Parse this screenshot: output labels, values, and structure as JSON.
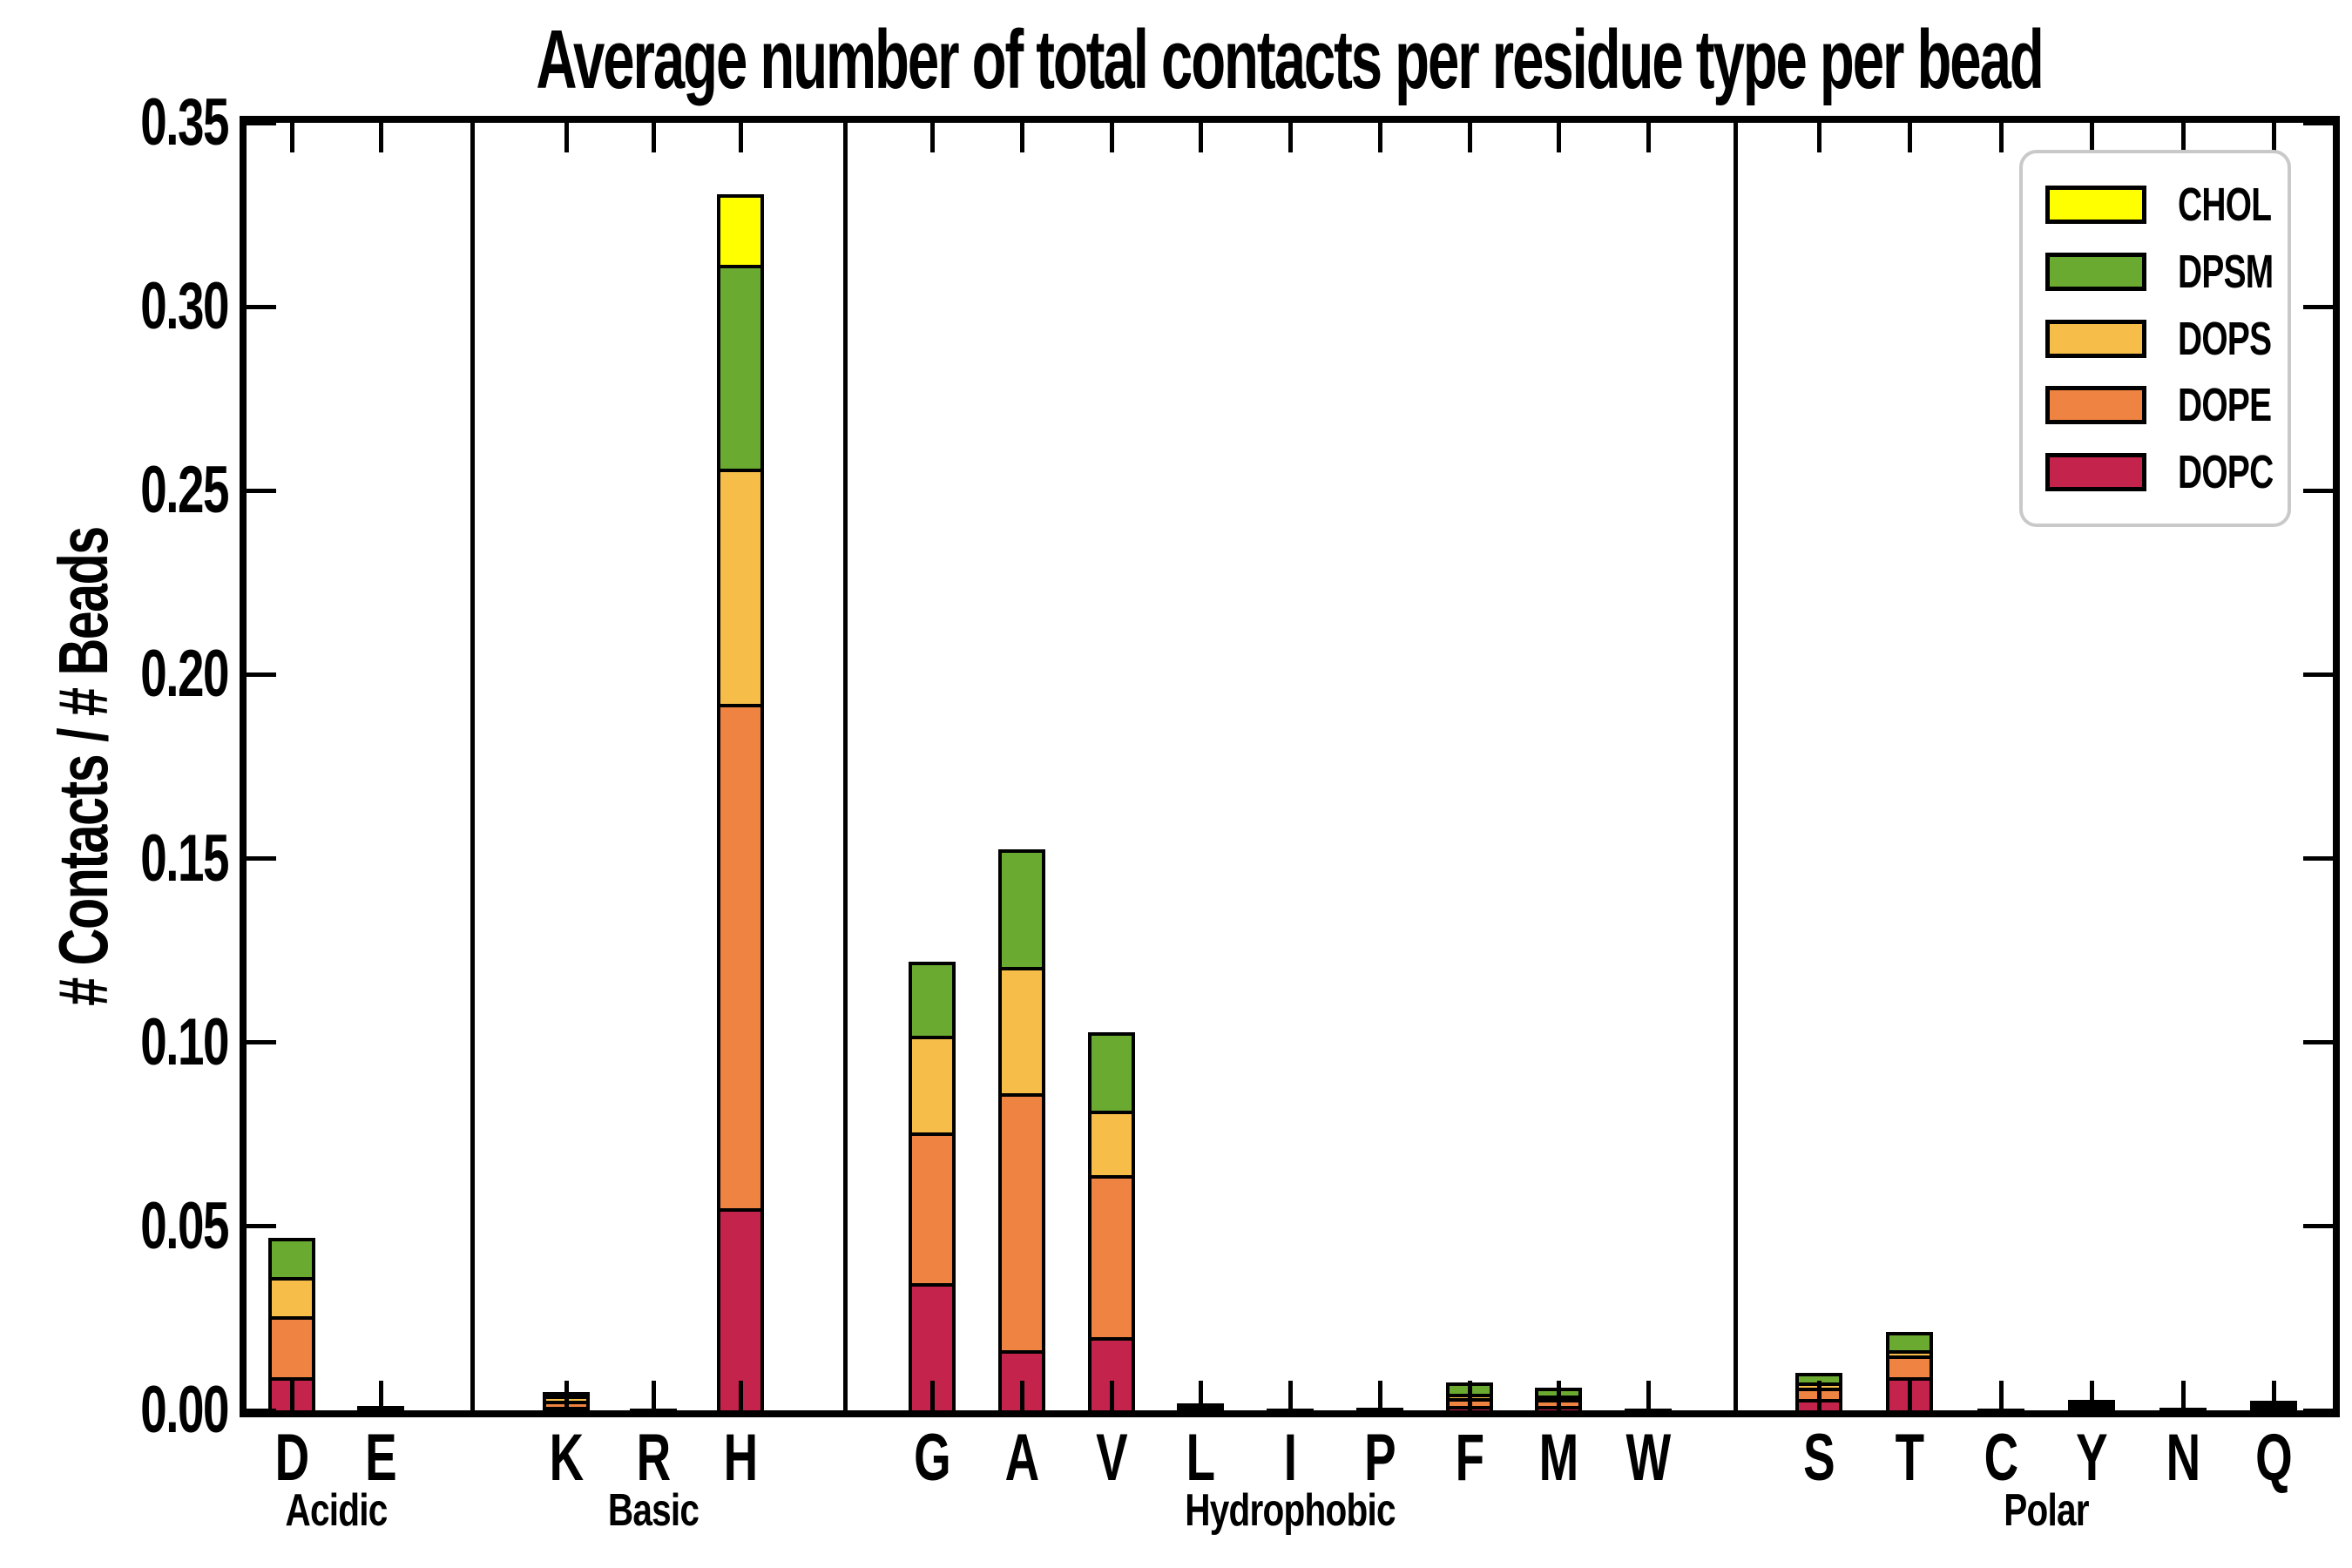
{
  "chart_data": {
    "type": "bar",
    "stacked": true,
    "title": "Average number of total contacts per residue type per bead",
    "ylabel": "# Contacts / # Beads",
    "ylim": [
      0,
      0.35
    ],
    "ytick_labels": [
      "0.00",
      "0.05",
      "0.10",
      "0.15",
      "0.20",
      "0.25",
      "0.30",
      "0.35"
    ],
    "grid": false,
    "legend_position": "upper right",
    "legend_entries": [
      {
        "label": "CHOL",
        "color": "#FFFF00"
      },
      {
        "label": "DPSM",
        "color": "#6AAA31"
      },
      {
        "label": "DOPS",
        "color": "#F6BE49"
      },
      {
        "label": "DOPE",
        "color": "#EE8342"
      },
      {
        "label": "DOPC",
        "color": "#C4234B"
      }
    ],
    "series_bottom_to_top": [
      "DOPC",
      "DOPE",
      "DOPS",
      "DPSM",
      "CHOL"
    ],
    "colors": {
      "CHOL": "#FFFF00",
      "DPSM": "#6AAA31",
      "DOPS": "#F6BE49",
      "DOPE": "#EE8342",
      "DOPC": "#C4234B"
    },
    "groups": [
      {
        "label": "Acidic",
        "bars": [
          {
            "label": "D",
            "values": {
              "DOPC": 0.009,
              "DOPE": 0.0165,
              "DOPS": 0.0107,
              "DPSM": 0.0107,
              "CHOL": 0
            }
          },
          {
            "label": "E",
            "values": {
              "DOPC": 0.0004,
              "DOPE": 0.0003,
              "DOPS": 0.0002,
              "DPSM": 0.0003,
              "CHOL": 0
            }
          }
        ]
      },
      {
        "label": "Basic",
        "bars": [
          {
            "label": "K",
            "values": {
              "DOPC": 0.001,
              "DOPE": 0.0015,
              "DOPS": 0.0015,
              "DPSM": 0.001,
              "CHOL": 0
            }
          },
          {
            "label": "R",
            "values": {
              "DOPC": 0.0002,
              "DOPE": 0.0001,
              "DOPS": 0.0001,
              "DPSM": 0.0001,
              "CHOL": 0
            }
          },
          {
            "label": "H",
            "values": {
              "DOPC": 0.055,
              "DOPE": 0.137,
              "DOPS": 0.064,
              "DPSM": 0.0555,
              "CHOL": 0.019
            }
          }
        ]
      },
      {
        "label": "Hydrophobic",
        "bars": [
          {
            "label": "G",
            "values": {
              "DOPC": 0.0345,
              "DOPE": 0.041,
              "DOPS": 0.0264,
              "DPSM": 0.0201,
              "CHOL": 0
            }
          },
          {
            "label": "A",
            "values": {
              "DOPC": 0.0164,
              "DOPE": 0.0698,
              "DOPS": 0.0343,
              "DPSM": 0.0321,
              "CHOL": 0
            }
          },
          {
            "label": "V",
            "values": {
              "DOPC": 0.02,
              "DOPE": 0.044,
              "DOPS": 0.0174,
              "DPSM": 0.0213,
              "CHOL": 0
            }
          },
          {
            "label": "L",
            "values": {
              "DOPC": 0.0006,
              "DOPE": 0.0005,
              "DOPS": 0.0003,
              "DPSM": 0.0004,
              "CHOL": 0
            }
          },
          {
            "label": "I",
            "values": {
              "DOPC": 0.0002,
              "DOPE": 0.0001,
              "DOPS": 0.0001,
              "DPSM": 0.0001,
              "CHOL": 0
            }
          },
          {
            "label": "P",
            "values": {
              "DOPC": 0.0003,
              "DOPE": 0.0002,
              "DOPS": 0.0001,
              "DPSM": 0.0002,
              "CHOL": 0
            }
          },
          {
            "label": "F",
            "values": {
              "DOPC": 0.0012,
              "DOPE": 0.0022,
              "DOPS": 0.0012,
              "DPSM": 0.003,
              "CHOL": 0
            }
          },
          {
            "label": "M",
            "values": {
              "DOPC": 0.0012,
              "DOPE": 0.002,
              "DOPS": 0.0008,
              "DPSM": 0.0022,
              "CHOL": 0
            }
          },
          {
            "label": "W",
            "values": {
              "DOPC": 0.0002,
              "DOPE": 0.0001,
              "DOPS": 0.0001,
              "DPSM": 0.0001,
              "CHOL": 0
            }
          }
        ]
      },
      {
        "label": "Polar",
        "bars": [
          {
            "label": "S",
            "values": {
              "DOPC": 0.003,
              "DOPE": 0.0031,
              "DOPS": 0.0014,
              "DPSM": 0.0028,
              "CHOL": 0
            }
          },
          {
            "label": "T",
            "values": {
              "DOPC": 0.009,
              "DOPE": 0.006,
              "DOPS": 0.0014,
              "DPSM": 0.005,
              "CHOL": 0
            }
          },
          {
            "label": "C",
            "values": {
              "DOPC": 0.0001,
              "DOPE": 0.0001,
              "DOPS": 0.0001,
              "DPSM": 0.0001,
              "CHOL": 0
            }
          },
          {
            "label": "Y",
            "values": {
              "DOPC": 0.001,
              "DOPE": 0.0008,
              "DOPS": 0.0005,
              "DPSM": 0.0005,
              "CHOL": 0
            }
          },
          {
            "label": "N",
            "values": {
              "DOPC": 0.0002,
              "DOPE": 0.0002,
              "DOPS": 0.0001,
              "DPSM": 0.0001,
              "CHOL": 0
            }
          },
          {
            "label": "Q",
            "values": {
              "DOPC": 0.0009,
              "DOPE": 0.0007,
              "DOPS": 0.0004,
              "DPSM": 0.0005,
              "CHOL": 0
            }
          }
        ]
      }
    ]
  }
}
